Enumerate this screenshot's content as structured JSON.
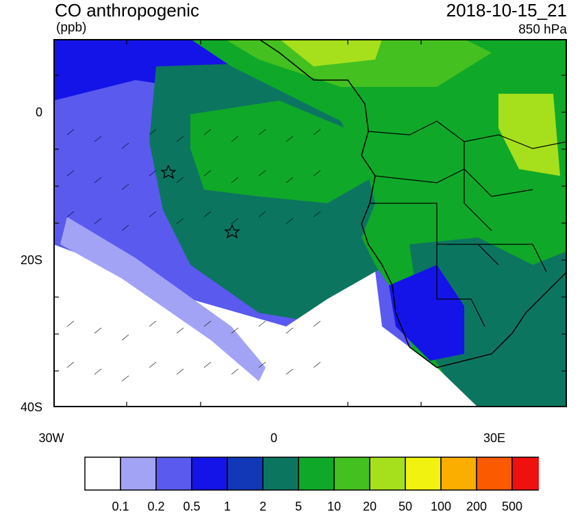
{
  "header": {
    "title": "CO anthropogenic",
    "units": "(ppb)",
    "timestamp": "2018-10-15_21",
    "level": "850 hPa"
  },
  "axes": {
    "lat_labels": [
      "0",
      "20S",
      "40S"
    ],
    "lon_labels": [
      "30W",
      "0",
      "30E"
    ]
  },
  "colorbar": {
    "colors": [
      "#ffffff",
      "#a3a3f5",
      "#5a5aef",
      "#1414e8",
      "#1238b8",
      "#0c7560",
      "#10a828",
      "#44c020",
      "#a6e01c",
      "#f2f210",
      "#fcae00",
      "#fc5a00",
      "#f01010"
    ],
    "labels": [
      "0.1",
      "0.2",
      "0.5",
      "1",
      "2",
      "5",
      "10",
      "20",
      "50",
      "100",
      "200",
      "500"
    ]
  },
  "markers": {
    "count": 2,
    "symbol": "star-icon"
  }
}
